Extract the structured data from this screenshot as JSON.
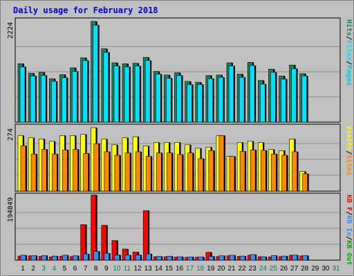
{
  "chart_data": {
    "type": "bar",
    "title": "Daily usage for February 2018",
    "x": [
      "1",
      "2",
      "3",
      "4",
      "5",
      "6",
      "7",
      "8",
      "9",
      "10",
      "11",
      "12",
      "13",
      "14",
      "15",
      "16",
      "17",
      "18",
      "19",
      "20",
      "21",
      "22",
      "23",
      "24",
      "25",
      "26",
      "27",
      "28",
      "29",
      "30",
      "31"
    ],
    "weekend_days": [
      3,
      4,
      10,
      11,
      17,
      18,
      24,
      25,
      31
    ],
    "colors": {
      "hits": "#1b8060",
      "files": "#00e0ff",
      "pages": "#00c8e8",
      "visits": "#ffff00",
      "sites": "#ff8800",
      "kbf": "#ff0000",
      "kbin": "#3090ff",
      "kbout": "#00aa00",
      "weekday_label": "#000000",
      "weekend_label": "#008040",
      "title": "#0000cc",
      "background": "#c0c0c0"
    },
    "panels": [
      {
        "name": "pages-files-hits",
        "max_label": "2224",
        "ymax": 2224,
        "series": [
          {
            "name": "Hits",
            "key": "hits",
            "values": [
              1290,
              1080,
              1100,
              960,
              1050,
              1200,
              1420,
              2224,
              1620,
              1310,
              1290,
              1300,
              1430,
              1120,
              1040,
              1090,
              900,
              880,
              1030,
              1040,
              1310,
              1060,
              1320,
              920,
              1170,
              1020,
              1260,
              1070,
              0,
              0,
              0
            ]
          },
          {
            "name": "Files",
            "key": "files",
            "values": [
              1220,
              1020,
              1030,
              900,
              980,
              1120,
              1360,
              2140,
              1540,
              1240,
              1220,
              1240,
              1360,
              1060,
              970,
              1030,
              830,
              830,
              960,
              990,
              1240,
              990,
              1250,
              840,
              1100,
              950,
              1180,
              1020,
              0,
              0,
              0
            ]
          },
          {
            "name": "Pages",
            "key": "pages",
            "values": [
              0,
              0,
              0,
              0,
              0,
              0,
              0,
              0,
              0,
              0,
              0,
              0,
              0,
              0,
              0,
              0,
              0,
              0,
              0,
              0,
              0,
              0,
              0,
              0,
              0,
              0,
              0,
              0,
              0,
              0,
              0
            ]
          }
        ],
        "label": [
          {
            "text": "Hits",
            "key": "hits"
          },
          {
            "text": "/",
            "key": "sep"
          },
          {
            "text": "Files",
            "key": "files"
          },
          {
            "text": "/",
            "key": "sep"
          },
          {
            "text": "Pages",
            "key": "pages"
          }
        ]
      },
      {
        "name": "visits-sites",
        "max_label": "274",
        "ymax": 274,
        "series": [
          {
            "name": "Visits",
            "key": "visits",
            "values": [
              240,
              230,
              225,
              215,
              240,
              240,
              245,
              274,
              225,
              200,
              230,
              235,
              195,
              210,
              210,
              210,
              200,
              185,
              190,
              240,
              150,
              210,
              215,
              210,
              180,
              175,
              225,
              85,
              0,
              0,
              0
            ]
          },
          {
            "name": "Sites",
            "key": "sites",
            "values": [
              196,
              160,
              180,
              160,
              178,
              180,
              163,
              205,
              170,
              155,
              165,
              170,
              150,
              165,
              165,
              158,
              165,
              140,
              175,
              240,
              150,
              172,
              178,
              176,
              160,
              155,
              170,
              75,
              0,
              0,
              0
            ]
          }
        ],
        "label": [
          {
            "text": "Visits",
            "key": "visits"
          },
          {
            "text": "/",
            "key": "sep"
          },
          {
            "text": "Sites",
            "key": "sites"
          }
        ]
      },
      {
        "name": "kbytes",
        "max_label": "194849",
        "ymax": 194849,
        "series": [
          {
            "name": "KB F",
            "key": "kbf",
            "values": [
              12500,
              13000,
              11500,
              9800,
              12000,
              11000,
              109000,
              200000,
              107000,
              60000,
              34000,
              25000,
              152000,
              10500,
              10500,
              9500,
              8800,
              8800,
              24000,
              11000,
              13500,
              11500,
              15000,
              10500,
              10000,
              11000,
              15000,
              13000,
              0,
              0,
              0
            ]
          },
          {
            "name": "KB In",
            "key": "kbin",
            "values": [
              15000,
              14000,
              14000,
              12500,
              15000,
              13500,
              19000,
              27000,
              21000,
              16000,
              15500,
              16000,
              19000,
              11500,
              12000,
              10500,
              9800,
              9800,
              11500,
              13500,
              15000,
              12500,
              17000,
              10500,
              14000,
              12500,
              15500,
              14000,
              0,
              0,
              0
            ]
          }
        ],
        "label": [
          {
            "text": "KB F",
            "key": "kbf"
          },
          {
            "text": "/",
            "key": "sep"
          },
          {
            "text": "KB In",
            "key": "kbin"
          },
          {
            "text": "/",
            "key": "sep"
          },
          {
            "text": "KB Out",
            "key": "kbout"
          }
        ]
      }
    ],
    "grid": true
  }
}
